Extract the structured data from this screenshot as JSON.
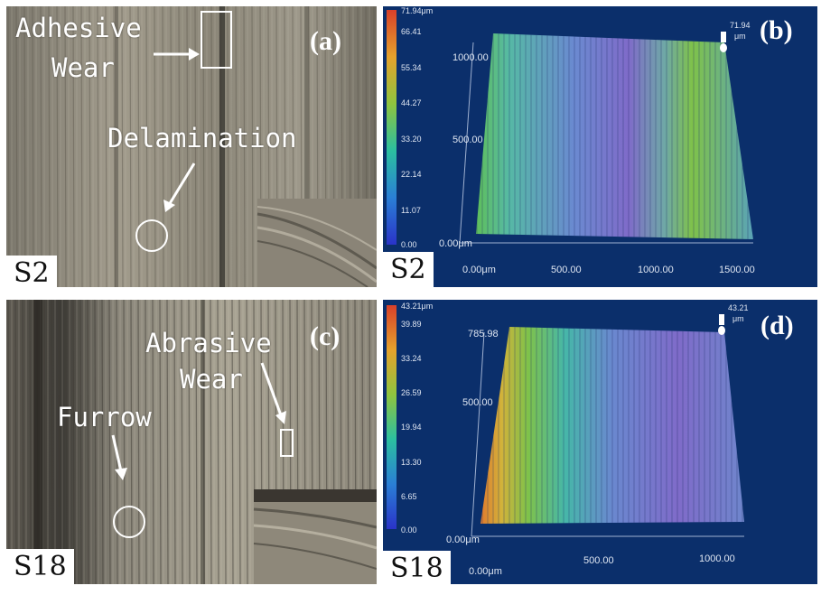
{
  "panels": {
    "a": {
      "label": "(a)",
      "sample": "S2",
      "annotations": {
        "adhesive": "Adhesive",
        "adhesive2": "Wear",
        "delamination": "Delamination"
      }
    },
    "b": {
      "label": "(b)",
      "sample": "S2",
      "colorbar_ticks": [
        "71.94μm",
        "66.41",
        "55.34",
        "44.27",
        "33.20",
        "22.14",
        "11.07",
        "0.00"
      ],
      "z_label_value": "71.94",
      "z_label_unit": "μm",
      "y_ticks": [
        "1000.00",
        "500.00",
        "0.00μm"
      ],
      "x_ticks": [
        "0.00μm",
        "500.00",
        "1000.00",
        "1500.00"
      ]
    },
    "c": {
      "label": "(c)",
      "sample": "S18",
      "annotations": {
        "abrasive": "Abrasive",
        "abrasive2": "Wear",
        "furrow": "Furrow"
      }
    },
    "d": {
      "label": "(d)",
      "sample": "S18",
      "colorbar_ticks": [
        "43.21μm",
        "39.89",
        "33.24",
        "26.59",
        "19.94",
        "13.30",
        "6.65",
        "0.00"
      ],
      "z_label_value": "43.21",
      "z_label_unit": "μm",
      "y_ticks": [
        "785.98",
        "500.00",
        "0.00μm"
      ],
      "x_ticks": [
        "0.00μm",
        "500.00",
        "1000.00"
      ]
    }
  },
  "colors": {
    "plot_bg": "#0b2f6b",
    "metal": "#8f8a7d",
    "annotation": "#ffffff"
  }
}
